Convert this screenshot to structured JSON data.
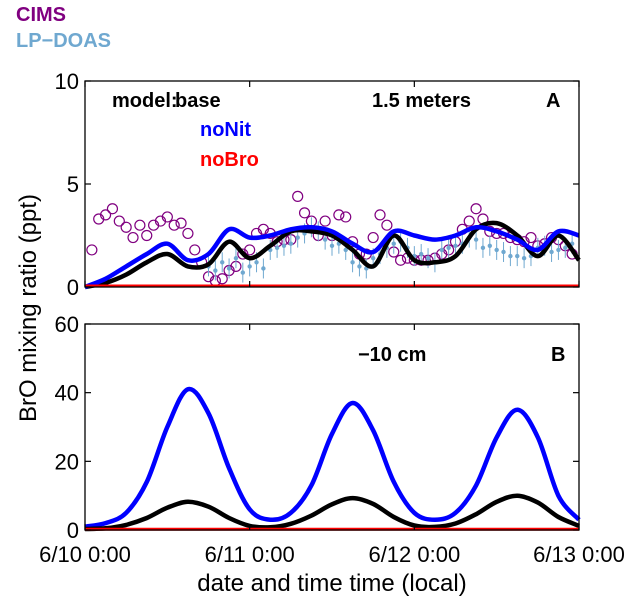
{
  "chart_data": [
    {
      "panel": "A",
      "type": "scatter",
      "label": "1.5 meters",
      "panel_letter": "A",
      "ylim": [
        0,
        10
      ],
      "yticks": [
        0,
        5,
        10
      ],
      "xlim": [
        "6/10 0:00",
        "6/13 0:00"
      ],
      "legend": {
        "cims": "CIMS",
        "lpdoas": "LP−DOAS",
        "model_prefix": "model:",
        "base": "base",
        "nonit": "noNit",
        "nobro": "noBro"
      },
      "colors": {
        "cims": "#800080",
        "lpdoas": "#6fa8d0",
        "base": "#000000",
        "nonit": "#0000ff",
        "nobro": "#ff0000"
      },
      "series": [
        {
          "name": "base",
          "kind": "line",
          "x": [
            "6/10 0:00",
            "6/10 3:00",
            "6/10 6:00",
            "6/10 9:00",
            "6/10 12:00",
            "6/10 15:00",
            "6/10 18:00",
            "6/10 21:00",
            "6/11 0:00",
            "6/11 3:00",
            "6/11 6:00",
            "6/11 9:00",
            "6/11 12:00",
            "6/11 15:00",
            "6/11 18:00",
            "6/11 21:00",
            "6/12 0:00",
            "6/12 3:00",
            "6/12 6:00",
            "6/12 9:00",
            "6/12 12:00",
            "6/12 15:00",
            "6/12 18:00",
            "6/12 21:00",
            "6/13 0:00"
          ],
          "values": [
            0.0,
            0.2,
            0.6,
            1.2,
            1.6,
            1.0,
            1.1,
            2.2,
            1.4,
            2.0,
            2.7,
            2.7,
            2.5,
            1.8,
            1.0,
            2.5,
            1.3,
            1.2,
            1.5,
            2.8,
            3.1,
            2.5,
            1.5,
            2.5,
            1.3
          ]
        },
        {
          "name": "noNit",
          "kind": "line",
          "x": [
            "6/10 0:00",
            "6/10 3:00",
            "6/10 6:00",
            "6/10 9:00",
            "6/10 12:00",
            "6/10 15:00",
            "6/10 18:00",
            "6/10 21:00",
            "6/11 0:00",
            "6/11 3:00",
            "6/11 6:00",
            "6/11 9:00",
            "6/11 12:00",
            "6/11 15:00",
            "6/11 18:00",
            "6/11 21:00",
            "6/12 0:00",
            "6/12 3:00",
            "6/12 6:00",
            "6/12 9:00",
            "6/12 12:00",
            "6/12 15:00",
            "6/12 18:00",
            "6/12 21:00",
            "6/13 0:00"
          ],
          "values": [
            0.0,
            0.4,
            1.0,
            1.6,
            2.1,
            1.3,
            1.6,
            2.8,
            2.4,
            2.5,
            2.8,
            2.9,
            2.7,
            2.1,
            1.7,
            2.7,
            2.5,
            2.3,
            2.5,
            2.9,
            2.7,
            2.3,
            1.8,
            2.7,
            2.5
          ]
        },
        {
          "name": "noBro",
          "kind": "line",
          "x": [
            "6/10 0:00",
            "6/13 0:00"
          ],
          "values": [
            0.05,
            0.05
          ]
        },
        {
          "name": "CIMS",
          "kind": "markers",
          "x": [
            "6/10 1:00",
            "6/10 2:00",
            "6/10 3:00",
            "6/10 4:00",
            "6/10 5:00",
            "6/10 6:00",
            "6/10 7:00",
            "6/10 8:00",
            "6/10 9:00",
            "6/10 10:00",
            "6/10 11:00",
            "6/10 12:00",
            "6/10 13:00",
            "6/10 14:00",
            "6/10 15:00",
            "6/10 16:00",
            "6/10 17:00",
            "6/10 18:00",
            "6/10 19:00",
            "6/10 20:00",
            "6/10 21:00",
            "6/10 22:00",
            "6/10 23:00",
            "6/11 0:00",
            "6/11 1:00",
            "6/11 2:00",
            "6/11 3:00",
            "6/11 4:00",
            "6/11 5:00",
            "6/11 6:00",
            "6/11 7:00",
            "6/11 8:00",
            "6/11 9:00",
            "6/11 10:00",
            "6/11 11:00",
            "6/11 12:00",
            "6/11 13:00",
            "6/11 14:00",
            "6/11 15:00",
            "6/11 16:00",
            "6/11 17:00",
            "6/11 18:00",
            "6/11 19:00",
            "6/11 20:00",
            "6/11 21:00",
            "6/11 22:00",
            "6/11 23:00",
            "6/12 0:00",
            "6/12 1:00",
            "6/12 2:00",
            "6/12 3:00",
            "6/12 4:00",
            "6/12 5:00",
            "6/12 6:00",
            "6/12 7:00",
            "6/12 8:00",
            "6/12 9:00",
            "6/12 10:00",
            "6/12 11:00",
            "6/12 12:00",
            "6/12 13:00",
            "6/12 14:00",
            "6/12 15:00",
            "6/12 16:00",
            "6/12 17:00",
            "6/12 18:00",
            "6/12 19:00",
            "6/12 20:00",
            "6/12 21:00",
            "6/12 22:00",
            "6/12 23:00"
          ],
          "values": [
            1.8,
            3.3,
            3.5,
            3.8,
            3.2,
            2.9,
            2.4,
            3.0,
            2.5,
            3.0,
            3.2,
            3.4,
            3.0,
            3.1,
            2.6,
            1.8,
            1.2,
            0.5,
            0.3,
            0.4,
            0.8,
            1.0,
            1.6,
            1.8,
            2.6,
            2.8,
            2.6,
            2.2,
            2.3,
            2.3,
            4.4,
            3.6,
            3.2,
            2.5,
            3.2,
            2.5,
            3.5,
            3.4,
            2.2,
            1.6,
            1.6,
            2.4,
            3.5,
            3.0,
            1.7,
            1.3,
            1.4,
            1.3,
            1.3,
            1.3,
            1.4,
            1.6,
            1.8,
            2.2,
            2.8,
            3.2,
            3.8,
            3.3,
            2.7,
            2.6,
            2.6,
            2.4,
            2.3,
            2.2,
            2.4,
            2.0,
            2.1,
            2.4,
            2.3,
            2.0,
            1.6
          ]
        },
        {
          "name": "LP-DOAS",
          "kind": "markers",
          "x": [
            "6/10 18:00",
            "6/10 19:00",
            "6/10 20:00",
            "6/10 21:00",
            "6/10 22:00",
            "6/10 23:00",
            "6/11 0:00",
            "6/11 1:00",
            "6/11 2:00",
            "6/11 3:00",
            "6/11 4:00",
            "6/11 5:00",
            "6/11 6:00",
            "6/11 7:00",
            "6/11 8:00",
            "6/11 9:00",
            "6/11 10:00",
            "6/11 11:00",
            "6/11 12:00",
            "6/11 13:00",
            "6/11 14:00",
            "6/11 15:00",
            "6/11 16:00",
            "6/11 17:00",
            "6/11 18:00",
            "6/11 19:00",
            "6/11 20:00",
            "6/11 21:00",
            "6/11 22:00",
            "6/11 23:00",
            "6/12 0:00",
            "6/12 1:00",
            "6/12 2:00",
            "6/12 3:00",
            "6/12 4:00",
            "6/12 5:00",
            "6/12 6:00",
            "6/12 7:00",
            "6/12 8:00",
            "6/12 9:00",
            "6/12 10:00",
            "6/12 11:00",
            "6/12 12:00",
            "6/12 13:00",
            "6/12 14:00",
            "6/12 15:00",
            "6/12 16:00",
            "6/12 17:00",
            "6/12 18:00",
            "6/12 19:00",
            "6/12 20:00",
            "6/12 21:00",
            "6/12 22:00",
            "6/12 23:00"
          ],
          "values": [
            1.0,
            0.8,
            1.2,
            0.9,
            1.4,
            0.7,
            1.0,
            1.2,
            0.9,
            1.8,
            1.9,
            2.0,
            2.1,
            2.4,
            2.6,
            2.9,
            2.7,
            2.3,
            2.0,
            2.1,
            1.8,
            1.2,
            1.0,
            0.9,
            1.4,
            1.6,
            1.9,
            2.1,
            2.2,
            1.9,
            1.5,
            1.6,
            1.4,
            1.2,
            1.8,
            1.9,
            2.0,
            2.1,
            2.4,
            2.3,
            1.9,
            2.0,
            1.8,
            1.7,
            1.5,
            1.5,
            1.4,
            1.5,
            1.9,
            2.0,
            1.7,
            1.8,
            1.9,
            2.1
          ]
        }
      ]
    },
    {
      "panel": "B",
      "type": "line",
      "label": "−10 cm",
      "panel_letter": "B",
      "ylabel": "BrO mixing ratio (ppt)",
      "xlabel": "date and time time (local)",
      "ylim": [
        0,
        60
      ],
      "yticks": [
        0,
        20,
        40,
        60
      ],
      "xlim": [
        "6/10 0:00",
        "6/13 0:00"
      ],
      "xticks": [
        "6/10 0:00",
        "6/11 0:00",
        "6/12 0:00",
        "6/13 0:00"
      ],
      "series": [
        {
          "name": "noNit",
          "x": [
            "6/10 0:00",
            "6/10 3:00",
            "6/10 6:00",
            "6/10 9:00",
            "6/10 12:00",
            "6/10 15:00",
            "6/10 18:00",
            "6/10 21:00",
            "6/11 0:00",
            "6/11 3:00",
            "6/11 6:00",
            "6/11 9:00",
            "6/11 12:00",
            "6/11 15:00",
            "6/11 18:00",
            "6/11 21:00",
            "6/12 0:00",
            "6/12 3:00",
            "6/12 6:00",
            "6/12 9:00",
            "6/12 12:00",
            "6/12 15:00",
            "6/12 18:00",
            "6/12 21:00",
            "6/13 0:00"
          ],
          "values": [
            1,
            2,
            5,
            14,
            30,
            41,
            34,
            18,
            6,
            3,
            5,
            13,
            28,
            37,
            29,
            14,
            5,
            3,
            5,
            13,
            27,
            35,
            27,
            10,
            3
          ]
        },
        {
          "name": "base",
          "x": [
            "6/10 0:00",
            "6/10 3:00",
            "6/10 6:00",
            "6/10 9:00",
            "6/10 12:00",
            "6/10 15:00",
            "6/10 18:00",
            "6/10 21:00",
            "6/11 0:00",
            "6/11 3:00",
            "6/11 6:00",
            "6/11 9:00",
            "6/11 12:00",
            "6/11 15:00",
            "6/11 18:00",
            "6/11 21:00",
            "6/12 0:00",
            "6/12 3:00",
            "6/12 6:00",
            "6/12 9:00",
            "6/12 12:00",
            "6/12 15:00",
            "6/12 18:00",
            "6/12 21:00",
            "6/13 0:00"
          ],
          "values": [
            0.3,
            0.5,
            1.5,
            3.5,
            6.5,
            8.2,
            6.8,
            3.5,
            1.2,
            0.8,
            1.8,
            4.2,
            7.5,
            9.3,
            7.6,
            3.8,
            1.3,
            0.9,
            1.9,
            4.6,
            8.2,
            10.0,
            8.0,
            3.8,
            1.2
          ]
        },
        {
          "name": "noBro",
          "x": [
            "6/10 0:00",
            "6/13 0:00"
          ],
          "values": [
            0.2,
            0.2
          ]
        }
      ]
    }
  ]
}
